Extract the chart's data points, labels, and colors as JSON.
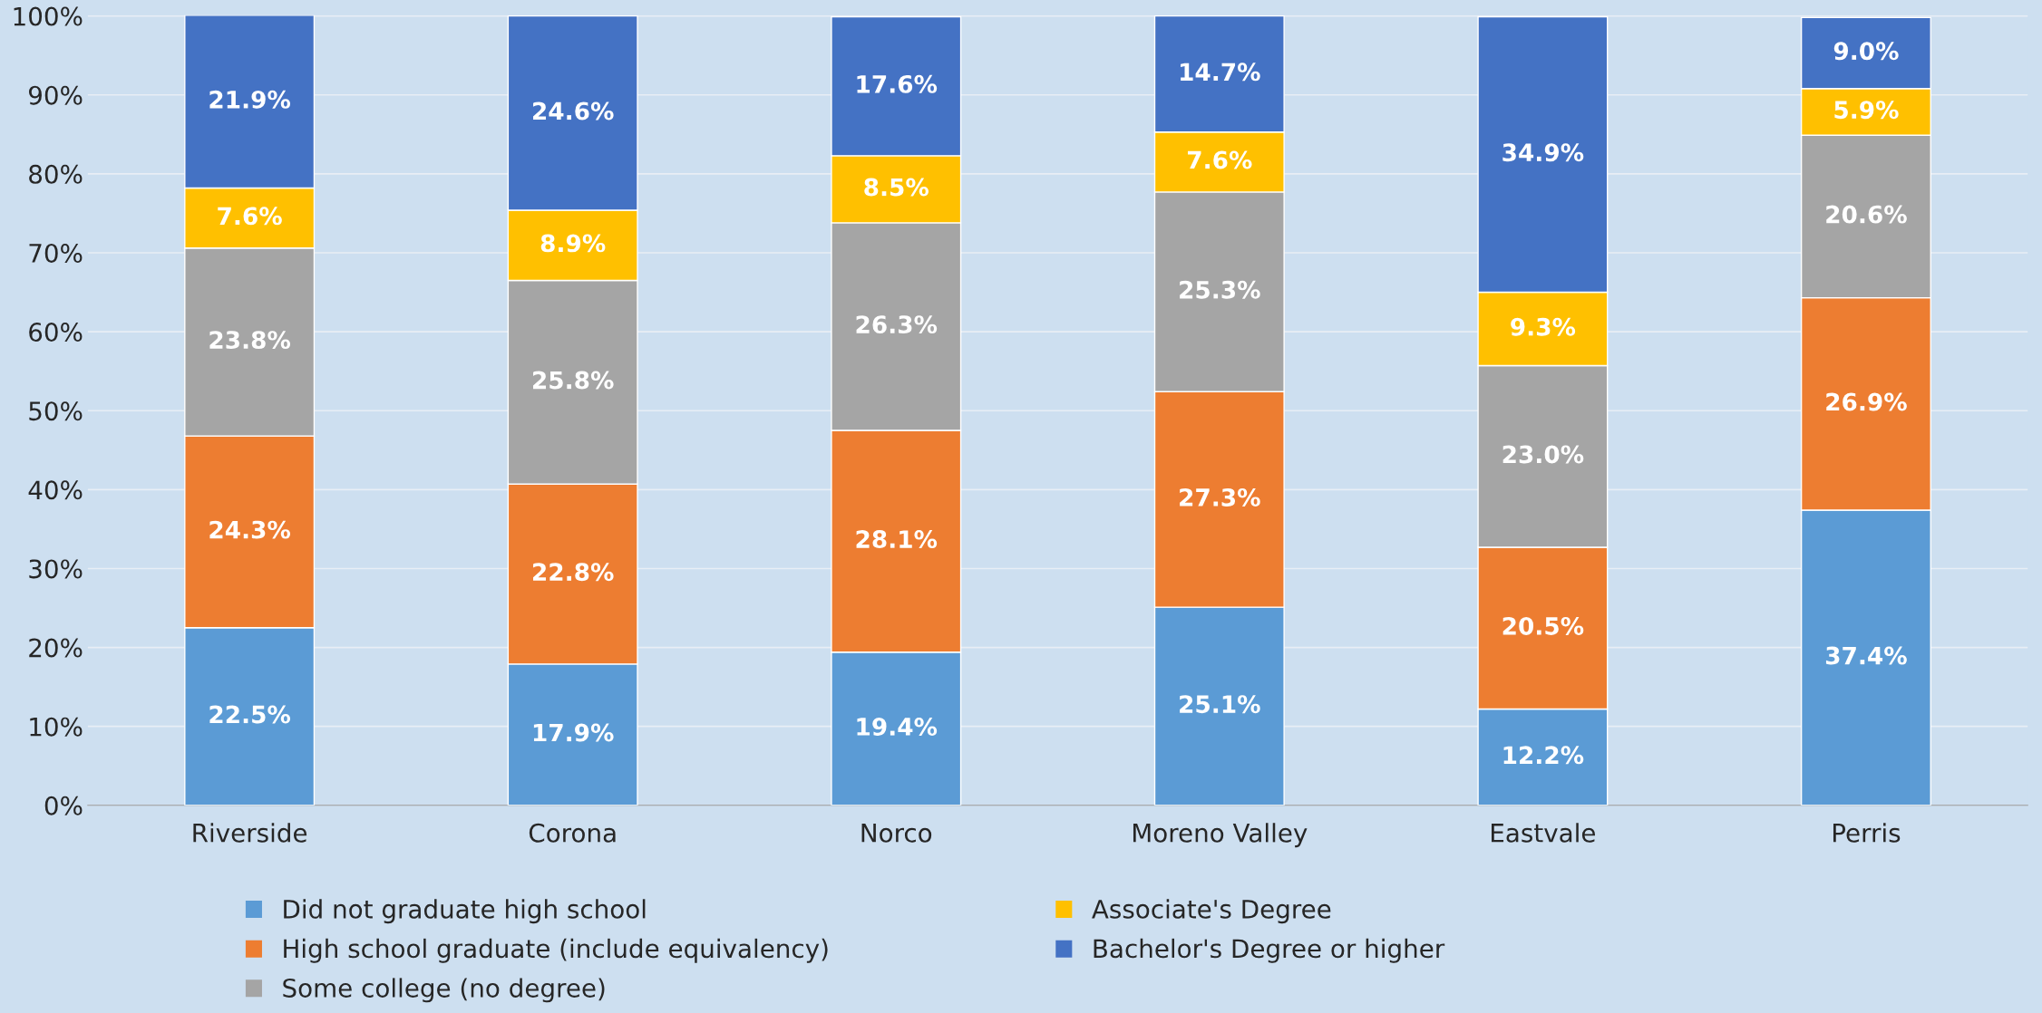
{
  "chart_data": {
    "type": "bar",
    "stacked": true,
    "categories": [
      "Riverside",
      "Corona",
      "Norco",
      "Moreno Valley",
      "Eastvale",
      "Perris"
    ],
    "series": [
      {
        "name": "Did not graduate high school",
        "color": "#5b9bd5",
        "values": [
          22.5,
          17.9,
          19.4,
          25.1,
          12.2,
          37.4
        ],
        "value_labels": [
          "22.5%",
          "17.9%",
          "19.4%",
          "25.1%",
          "12.2%",
          "37.4%"
        ]
      },
      {
        "name": "High school graduate (include equivalency)",
        "color": "#ed7d31",
        "values": [
          24.3,
          22.8,
          28.1,
          27.3,
          20.5,
          26.9
        ],
        "value_labels": [
          "24.3%",
          "22.8%",
          "28.1%",
          "27.3%",
          "20.5%",
          "26.9%"
        ]
      },
      {
        "name": "Some college (no degree)",
        "color": "#a5a5a5",
        "values": [
          23.8,
          25.8,
          26.3,
          25.3,
          23.0,
          20.6
        ],
        "value_labels": [
          "23.8%",
          "25.8%",
          "26.3%",
          "25.3%",
          "23.0%",
          "20.6%"
        ]
      },
      {
        "name": "Associate's Degree",
        "color": "#ffc000",
        "values": [
          7.6,
          8.9,
          8.5,
          7.6,
          9.3,
          5.9
        ],
        "value_labels": [
          "7.6%",
          "8.9%",
          "8.5%",
          "7.6%",
          "9.3%",
          "5.9%"
        ]
      },
      {
        "name": "Bachelor's Degree or higher",
        "color": "#4472c4",
        "values": [
          21.9,
          24.6,
          17.6,
          14.7,
          34.9,
          9.0
        ],
        "value_labels": [
          "21.9%",
          "24.6%",
          "17.6%",
          "14.7%",
          "34.9%",
          "9.0%"
        ]
      }
    ],
    "ylim": [
      0,
      100.1
    ],
    "yticks": [
      {
        "value": 0,
        "label": "0%"
      },
      {
        "value": 10,
        "label": "10%"
      },
      {
        "value": 20,
        "label": "20%"
      },
      {
        "value": 30,
        "label": "30%"
      },
      {
        "value": 40,
        "label": "40%"
      },
      {
        "value": 50,
        "label": "50%"
      },
      {
        "value": 60,
        "label": "60%"
      },
      {
        "value": 70,
        "label": "70%"
      },
      {
        "value": 80,
        "label": "80%"
      },
      {
        "value": 90,
        "label": "90%"
      },
      {
        "value": 100,
        "label": "100%"
      }
    ],
    "grid": "y",
    "legend": "bottom"
  }
}
